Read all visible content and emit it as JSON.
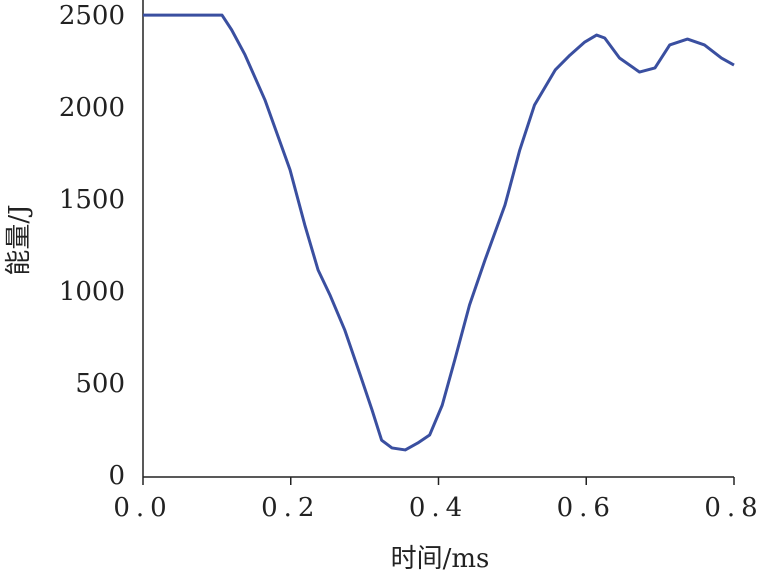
{
  "chart_data": {
    "type": "line",
    "x_label": "时间/ms",
    "y_label": "能量/J",
    "xlim": [
      0,
      0.8
    ],
    "ylim": [
      0,
      2600
    ],
    "xticks": [
      {
        "value": 0,
        "label": "0.0"
      },
      0.2,
      0.4,
      0.6,
      0.8
    ],
    "yticks": [
      0,
      500,
      1000,
      1500,
      2000,
      2500
    ],
    "series": [
      {
        "color": "#3a4fa0",
        "x": [
          0,
          0.107,
          0.12,
          0.138,
          0.165,
          0.199,
          0.219,
          0.237,
          0.253,
          0.273,
          0.294,
          0.31,
          0.323,
          0.337,
          0.355,
          0.372,
          0.388,
          0.405,
          0.422,
          0.442,
          0.463,
          0.49,
          0.51,
          0.53,
          0.558,
          0.578,
          0.598,
          0.614,
          0.625,
          0.645,
          0.672,
          0.693,
          0.713,
          0.737,
          0.76,
          0.783,
          0.8
        ],
        "values": [
          2510,
          2510,
          2430,
          2295,
          2050,
          1670,
          1370,
          1125,
          990,
          800,
          555,
          365,
          200,
          158,
          147,
          185,
          228,
          390,
          636,
          935,
          1180,
          1478,
          1777,
          2022,
          2212,
          2293,
          2364,
          2402,
          2386,
          2277,
          2201,
          2223,
          2348,
          2380,
          2348,
          2277,
          2239
        ]
      }
    ]
  }
}
